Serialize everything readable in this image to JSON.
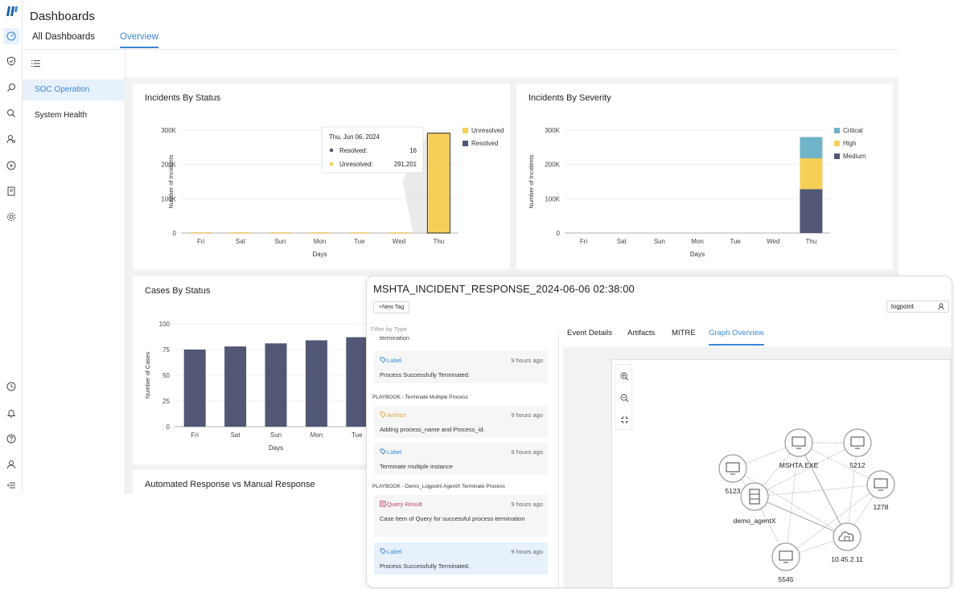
{
  "header": {
    "title": "Dashboards",
    "tabs": [
      {
        "label": "All Dashboards"
      },
      {
        "label": "Overview"
      }
    ]
  },
  "sidebar": {
    "items": [
      {
        "label": "SOC Operation"
      },
      {
        "label": "System Health"
      }
    ]
  },
  "icons": {
    "rail_top": [
      "dashboard-icon",
      "shield-icon",
      "investigate-icon",
      "search-icon",
      "user-search-icon",
      "play-icon",
      "report-icon",
      "gear-icon"
    ],
    "rail_bottom": [
      "clock-icon",
      "bell-icon",
      "help-icon",
      "user-icon",
      "collapse-icon"
    ]
  },
  "colors": {
    "accent": "#3b87d6",
    "resolved": "#525775",
    "unresolved": "#f6cf57",
    "critical": "#6fb4c8"
  },
  "panels": {
    "incidents_status": {
      "title": "Incidents By Status"
    },
    "incidents_severity": {
      "title": "Incidents By Severity"
    },
    "cases_status": {
      "title": "Cases By Status"
    },
    "automated": {
      "title": "Automated Response vs Manual Response"
    }
  },
  "chart_data": [
    {
      "type": "bar",
      "title": "Incidents By Status",
      "categories": [
        "Fri",
        "Sat",
        "Sun",
        "Mon",
        "Tue",
        "Wed",
        "Thu"
      ],
      "series": [
        {
          "name": "Resolved",
          "values": [
            0,
            0,
            0,
            0,
            0,
            0,
            16
          ]
        },
        {
          "name": "Unresolved",
          "values": [
            0,
            0,
            0,
            0,
            0,
            0,
            291201
          ]
        }
      ],
      "stacked": true,
      "xlabel": "Days",
      "ylabel": "Number of Incidents",
      "ylim": [
        0,
        300000
      ],
      "yticks": [
        0,
        100000,
        200000,
        300000
      ],
      "ytick_labels": [
        "0",
        "100K",
        "200K",
        "300K"
      ],
      "tooltip": {
        "date": "Thu, Jun 06, 2024",
        "rows": [
          {
            "label": "Resolved:",
            "value": "16"
          },
          {
            "label": "Unresolved:",
            "value": "291,201"
          }
        ]
      }
    },
    {
      "type": "bar",
      "title": "Incidents By Severity",
      "categories": [
        "Fri",
        "Sat",
        "Sun",
        "Mon",
        "Tue",
        "Wed",
        "Thu"
      ],
      "series": [
        {
          "name": "Medium",
          "values": [
            0,
            0,
            0,
            0,
            0,
            0,
            128000
          ]
        },
        {
          "name": "High",
          "values": [
            0,
            0,
            0,
            0,
            0,
            0,
            90000
          ]
        },
        {
          "name": "Critical",
          "values": [
            0,
            0,
            0,
            0,
            0,
            0,
            62000
          ]
        }
      ],
      "stacked": true,
      "xlabel": "Days",
      "ylabel": "Number of Incidents",
      "ylim": [
        0,
        300000
      ],
      "yticks": [
        0,
        100000,
        200000,
        300000
      ],
      "ytick_labels": [
        "0",
        "100K",
        "200K",
        "300K"
      ]
    },
    {
      "type": "bar",
      "title": "Cases By Status",
      "categories": [
        "Fri",
        "Sat",
        "Sun",
        "Mon",
        "Tue"
      ],
      "series": [
        {
          "name": "Cases",
          "values": [
            75,
            78,
            81,
            84,
            87
          ]
        }
      ],
      "xlabel": "Days",
      "ylabel": "Number of Cases",
      "ylim": [
        0,
        100
      ],
      "yticks": [
        0,
        25,
        50,
        75,
        100
      ],
      "ytick_labels": [
        "0",
        "25",
        "50",
        "75",
        "100"
      ]
    }
  ],
  "detail": {
    "title": "MSHTA_INCIDENT_RESPONSE_2024-06-06 02:38:00",
    "new_tag": "+New Tag",
    "user": "logpoint",
    "filter_placeholder": "Filter by Type",
    "cut_text": "termination",
    "tabs": [
      {
        "label": "Event Details"
      },
      {
        "label": "Artifacts"
      },
      {
        "label": "MITRE"
      },
      {
        "label": "Graph Overview"
      }
    ],
    "timeline": [
      {
        "type": "Label",
        "time": "9 hours ago",
        "desc": "Process Successfully Terminated."
      },
      {
        "playbook": "PLAYBOOK - Terminate Multiple Process"
      },
      {
        "type": "Artifact",
        "time": "9 hours ago",
        "desc": "Adding process_name and Process_id."
      },
      {
        "type": "Label",
        "time": "9 hours ago",
        "desc": "Terminate multiple instance"
      },
      {
        "playbook": "PLAYBOOK - Demo_Logpoint AgentX Terminate Process"
      },
      {
        "type": "Query Result",
        "time": "9 hours ago",
        "desc": "Case Item of Query for successful process termination"
      },
      {
        "type": "Label",
        "time": "9 hours ago",
        "desc": "Process Successfully Terminated."
      }
    ],
    "graph_nodes": [
      {
        "label": "MSHTA.EXE",
        "icon": "monitor-icon"
      },
      {
        "label": "5212",
        "icon": "monitor-icon"
      },
      {
        "label": "5123",
        "icon": "monitor-icon"
      },
      {
        "label": "1278",
        "icon": "monitor-icon"
      },
      {
        "label": "demo_agentX",
        "icon": "server-icon"
      },
      {
        "label": "10.45.2.11",
        "icon": "cloud-icon"
      },
      {
        "label": "5545",
        "icon": "monitor-icon"
      }
    ]
  }
}
